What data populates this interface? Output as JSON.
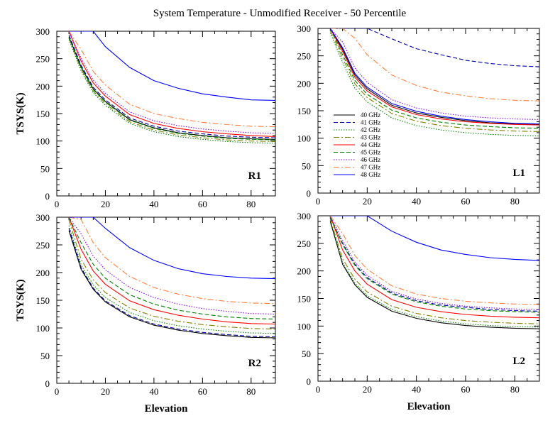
{
  "figure": {
    "title": "System Temperature - Unmodified Receiver - 50 Percentile"
  },
  "chart_data": [
    {
      "type": "line",
      "panel": "R1",
      "label": "R1",
      "xlabel": "",
      "ylabel": "TSYS(K)",
      "xlim": [
        0,
        90
      ],
      "ylim": [
        0,
        300
      ],
      "xticks": [
        0,
        20,
        40,
        60,
        80
      ],
      "yticks": [
        0,
        50,
        100,
        150,
        200,
        250,
        300
      ],
      "grid": false,
      "x": [
        5,
        10,
        15,
        20,
        30,
        40,
        50,
        60,
        70,
        80,
        90
      ],
      "series": [
        {
          "name": "40 GHz",
          "color": "#000000",
          "dash": "solid",
          "values": [
            290,
            235,
            195,
            172,
            139,
            124,
            115,
            110,
            106,
            104,
            103
          ]
        },
        {
          "name": "41 GHz",
          "color": "#0000a0",
          "dash": "dashed",
          "values": [
            293,
            238,
            198,
            175,
            142,
            127,
            118,
            113,
            109,
            107,
            106
          ]
        },
        {
          "name": "42 GHz",
          "color": "#008000",
          "dash": "dotted",
          "values": [
            285,
            228,
            188,
            165,
            132,
            117,
            108,
            103,
            99,
            97,
            96
          ]
        },
        {
          "name": "43 GHz",
          "color": "#808000",
          "dash": "dashdot",
          "values": [
            287,
            231,
            191,
            168,
            135,
            120,
            111,
            106,
            102,
            100,
            99
          ]
        },
        {
          "name": "44 GHz",
          "color": "#ff0000",
          "dash": "solid",
          "values": [
            300,
            246,
            206,
            182,
            148,
            132,
            123,
            117,
            113,
            110,
            108
          ]
        },
        {
          "name": "45 GHz",
          "color": "#008000",
          "dash": "dashed",
          "values": [
            289,
            234,
            194,
            171,
            138,
            123,
            114,
            109,
            105,
            103,
            102
          ]
        },
        {
          "name": "46 GHz",
          "color": "#8000ff",
          "dash": "dotted",
          "values": [
            300,
            251,
            211,
            187,
            153,
            137,
            128,
            122,
            118,
            115,
            114
          ]
        },
        {
          "name": "47 GHz",
          "color": "#ff8040",
          "dash": "dashdot",
          "values": [
            300,
            267,
            227,
            202,
            167,
            150,
            141,
            134,
            130,
            127,
            126
          ]
        },
        {
          "name": "48 GHz",
          "color": "#0000ff",
          "dash": "solid",
          "values": [
            300,
            300,
            300,
            272,
            234,
            210,
            196,
            186,
            180,
            175,
            174
          ]
        }
      ]
    },
    {
      "type": "line",
      "panel": "L1",
      "label": "L1",
      "xlabel": "",
      "ylabel": "",
      "xlim": [
        0,
        90
      ],
      "ylim": [
        0,
        300
      ],
      "xticks": [
        0,
        20,
        40,
        60,
        80
      ],
      "yticks": [
        0,
        50,
        100,
        150,
        200,
        250,
        300
      ],
      "grid": false,
      "legend": "left-middle",
      "x": [
        5,
        10,
        15,
        20,
        30,
        40,
        50,
        60,
        70,
        80,
        90
      ],
      "series": [
        {
          "name": "40 GHz",
          "color": "#000000",
          "dash": "solid",
          "values": [
            300,
            262,
            215,
            190,
            160,
            146,
            138,
            132,
            128,
            126,
            125
          ]
        },
        {
          "name": "41 GHz",
          "color": "#0000a0",
          "dash": "dashed",
          "values": [
            300,
            300,
            300,
            300,
            281,
            263,
            252,
            242,
            236,
            232,
            230
          ]
        },
        {
          "name": "42 GHz",
          "color": "#008000",
          "dash": "dotted",
          "values": [
            292,
            238,
            191,
            166,
            137,
            123,
            115,
            110,
            107,
            105,
            104
          ]
        },
        {
          "name": "43 GHz",
          "color": "#808000",
          "dash": "dashdot",
          "values": [
            296,
            246,
            199,
            174,
            145,
            131,
            123,
            118,
            115,
            113,
            112
          ]
        },
        {
          "name": "44 GHz",
          "color": "#ff0000",
          "dash": "solid",
          "values": [
            300,
            258,
            211,
            186,
            157,
            143,
            135,
            130,
            127,
            125,
            124
          ]
        },
        {
          "name": "45 GHz",
          "color": "#008000",
          "dash": "dashed",
          "values": [
            300,
            252,
            205,
            180,
            151,
            137,
            129,
            124,
            121,
            119,
            118
          ]
        },
        {
          "name": "46 GHz",
          "color": "#8000ff",
          "dash": "dotted",
          "values": [
            300,
            275,
            228,
            202,
            170,
            155,
            146,
            140,
            137,
            135,
            134
          ]
        },
        {
          "name": "47 GHz",
          "color": "#ff8040",
          "dash": "dashdot",
          "values": [
            300,
            300,
            282,
            252,
            215,
            196,
            184,
            177,
            172,
            169,
            168
          ]
        },
        {
          "name": "48 GHz",
          "color": "#0000ff",
          "dash": "solid",
          "values": [
            300,
            265,
            218,
            193,
            163,
            149,
            140,
            134,
            130,
            127,
            126
          ]
        }
      ]
    },
    {
      "type": "line",
      "panel": "R2",
      "label": "R2",
      "xlabel": "Elevation",
      "ylabel": "TSYS(K)",
      "xlim": [
        0,
        90
      ],
      "ylim": [
        0,
        300
      ],
      "xticks": [
        0,
        20,
        40,
        60,
        80
      ],
      "yticks": [
        0,
        50,
        100,
        150,
        200,
        250,
        300
      ],
      "grid": false,
      "x": [
        5,
        10,
        15,
        20,
        30,
        40,
        50,
        60,
        70,
        80,
        90
      ],
      "series": [
        {
          "name": "40 GHz",
          "color": "#000000",
          "dash": "solid",
          "values": [
            276,
            206,
            170,
            147,
            120,
            105,
            96,
            90,
            86,
            83,
            82
          ]
        },
        {
          "name": "41 GHz",
          "color": "#0000a0",
          "dash": "dashed",
          "values": [
            280,
            209,
            172,
            149,
            122,
            107,
            98,
            92,
            88,
            85,
            84
          ]
        },
        {
          "name": "42 GHz",
          "color": "#008000",
          "dash": "dotted",
          "values": [
            285,
            214,
            178,
            155,
            128,
            113,
            104,
            98,
            94,
            91,
            90
          ]
        },
        {
          "name": "43 GHz",
          "color": "#808000",
          "dash": "dashdot",
          "values": [
            295,
            224,
            187,
            164,
            136,
            121,
            112,
            106,
            102,
            99,
            98
          ]
        },
        {
          "name": "44 GHz",
          "color": "#ff0000",
          "dash": "solid",
          "values": [
            300,
            242,
            203,
            179,
            149,
            133,
            123,
            116,
            111,
            108,
            107
          ]
        },
        {
          "name": "45 GHz",
          "color": "#008000",
          "dash": "dashed",
          "values": [
            300,
            254,
            215,
            190,
            160,
            143,
            132,
            125,
            120,
            117,
            116
          ]
        },
        {
          "name": "46 GHz",
          "color": "#8000ff",
          "dash": "dotted",
          "values": [
            300,
            270,
            230,
            205,
            173,
            155,
            143,
            135,
            130,
            126,
            125
          ]
        },
        {
          "name": "47 GHz",
          "color": "#ff8040",
          "dash": "dashdot",
          "values": [
            300,
            296,
            254,
            227,
            193,
            173,
            161,
            153,
            148,
            145,
            144
          ]
        },
        {
          "name": "48 GHz",
          "color": "#0000ff",
          "dash": "solid",
          "values": [
            300,
            300,
            300,
            280,
            245,
            222,
            207,
            198,
            193,
            190,
            189
          ]
        }
      ]
    },
    {
      "type": "line",
      "panel": "L2",
      "label": "L2",
      "xlabel": "Elevation",
      "ylabel": "",
      "xlim": [
        0,
        90
      ],
      "ylim": [
        0,
        300
      ],
      "xticks": [
        0,
        20,
        40,
        60,
        80
      ],
      "yticks": [
        0,
        50,
        100,
        150,
        200,
        250,
        300
      ],
      "grid": false,
      "x": [
        5,
        10,
        15,
        20,
        30,
        40,
        50,
        60,
        70,
        80,
        90
      ],
      "series": [
        {
          "name": "40 GHz",
          "color": "#000000",
          "dash": "solid",
          "values": [
            290,
            212,
            175,
            152,
            127,
            114,
            106,
            101,
            98,
            96,
            95
          ]
        },
        {
          "name": "41 GHz",
          "color": "#0000a0",
          "dash": "dashed",
          "values": [
            296,
            250,
            212,
            188,
            160,
            146,
            138,
            134,
            130,
            128,
            127
          ]
        },
        {
          "name": "42 GHz",
          "color": "#008000",
          "dash": "dotted",
          "values": [
            292,
            215,
            178,
            155,
            130,
            117,
            109,
            104,
            101,
            99,
            98
          ]
        },
        {
          "name": "43 GHz",
          "color": "#808000",
          "dash": "dashdot",
          "values": [
            294,
            222,
            185,
            162,
            136,
            123,
            115,
            110,
            107,
            105,
            104
          ]
        },
        {
          "name": "44 GHz",
          "color": "#ff0000",
          "dash": "solid",
          "values": [
            300,
            238,
            200,
            176,
            148,
            134,
            126,
            121,
            118,
            116,
            115
          ]
        },
        {
          "name": "45 GHz",
          "color": "#008000",
          "dash": "dashed",
          "values": [
            298,
            248,
            210,
            186,
            158,
            144,
            136,
            131,
            128,
            126,
            125
          ]
        },
        {
          "name": "46 GHz",
          "color": "#8000ff",
          "dash": "dotted",
          "values": [
            300,
            255,
            216,
            192,
            163,
            149,
            141,
            136,
            133,
            131,
            130
          ]
        },
        {
          "name": "47 GHz",
          "color": "#ff8040",
          "dash": "dashdot",
          "values": [
            300,
            268,
            228,
            203,
            173,
            158,
            150,
            145,
            142,
            140,
            139
          ]
        },
        {
          "name": "48 GHz",
          "color": "#0000ff",
          "dash": "solid",
          "values": [
            300,
            300,
            300,
            300,
            272,
            252,
            238,
            230,
            224,
            221,
            219
          ]
        }
      ]
    }
  ]
}
